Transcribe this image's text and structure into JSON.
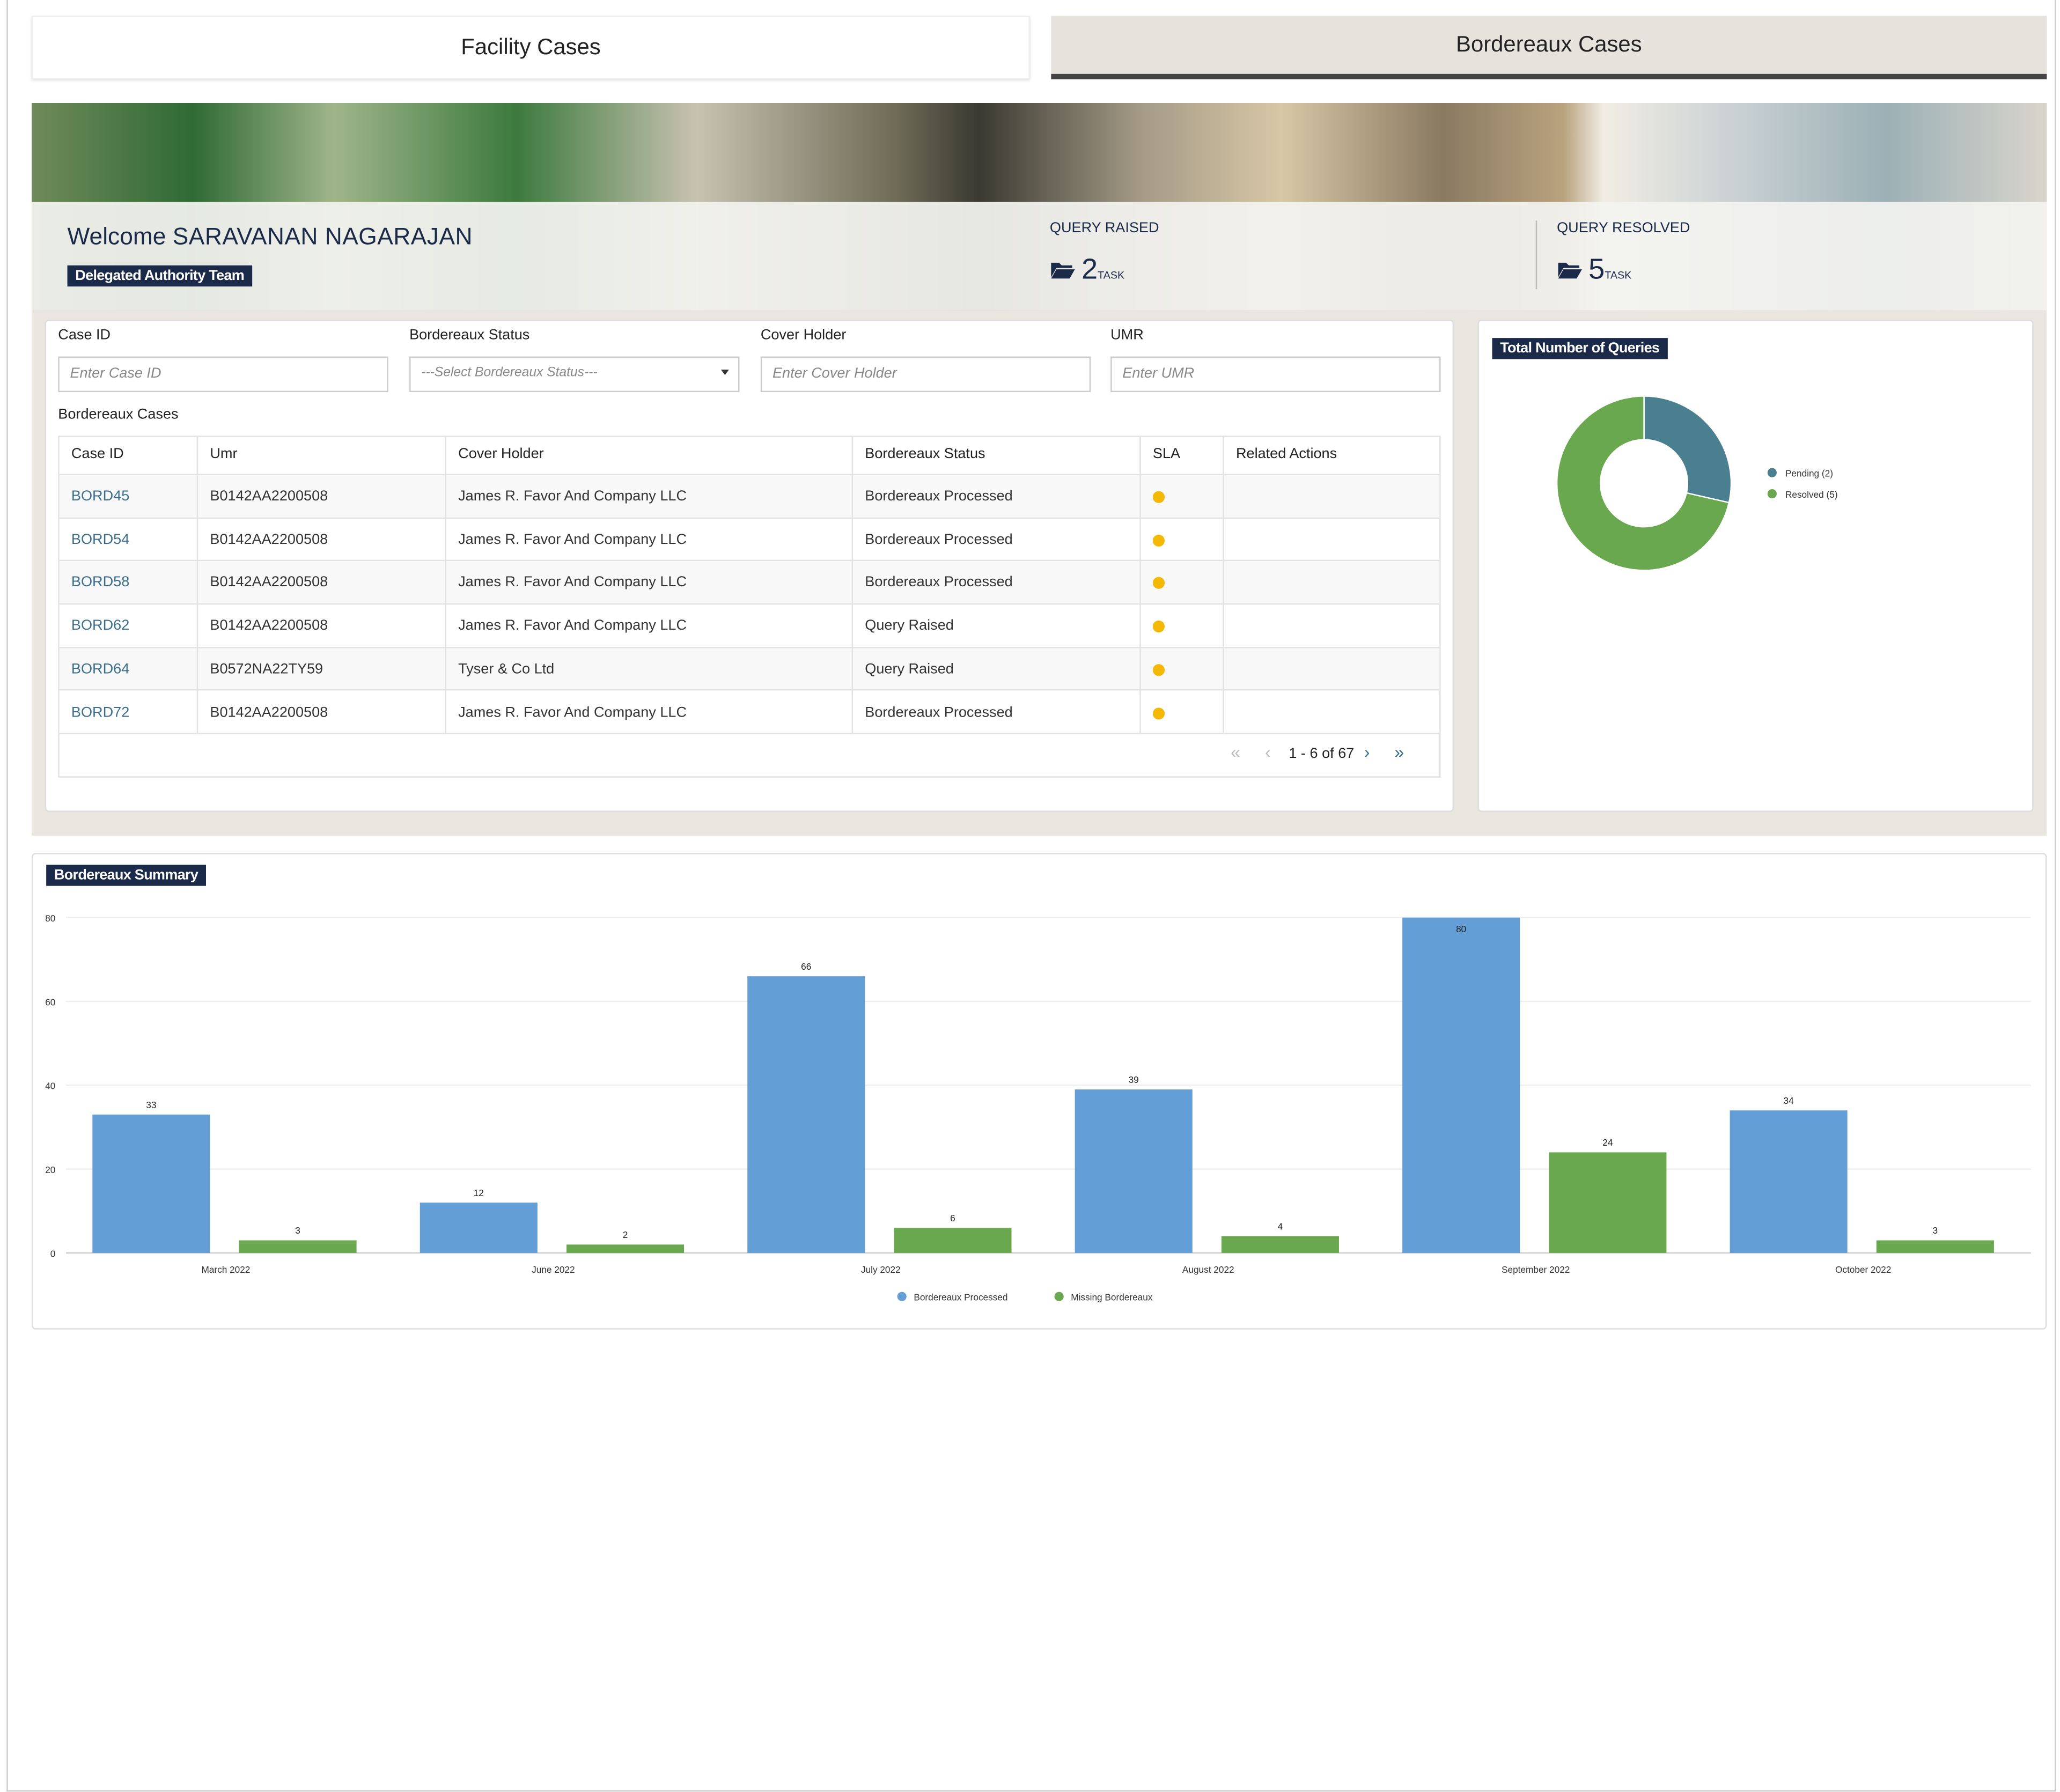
{
  "tabs": [
    "Facility Cases",
    "Bordereaux Cases"
  ],
  "header": {
    "welcome": "Welcome",
    "user": "SARAVANAN NAGARAJAN",
    "team": "Delegated Authority Team"
  },
  "stats": [
    {
      "label": "QUERY RAISED",
      "count": 2,
      "unit": "TASK"
    },
    {
      "label": "QUERY RESOLVED",
      "count": 5,
      "unit": "TASK"
    }
  ],
  "filters": [
    {
      "label": "Case ID",
      "placeholder": "Enter Case ID"
    },
    {
      "label": "Bordereaux Status",
      "placeholder": "---Select Bordereaux Status---"
    },
    {
      "label": "Cover Holder",
      "placeholder": "Enter Cover Holder"
    },
    {
      "label": "UMR",
      "placeholder": "Enter UMR"
    }
  ],
  "table": {
    "title": "Bordereaux Cases",
    "columns": [
      "Case ID",
      "Umr",
      "Cover Holder",
      "Bordereaux Status",
      "SLA",
      "Related Actions"
    ],
    "rows": [
      [
        "BORD45",
        "B0142AA2200508",
        "James R. Favor And Company LLC",
        "Bordereaux Processed"
      ],
      [
        "BORD54",
        "B0142AA2200508",
        "James R. Favor And Company LLC",
        "Bordereaux Processed"
      ],
      [
        "BORD58",
        "B0142AA2200508",
        "James R. Favor And Company LLC",
        "Bordereaux Processed"
      ],
      [
        "BORD62",
        "B0142AA2200508",
        "James R. Favor And Company LLC",
        "Query Raised"
      ],
      [
        "BORD64",
        "B0572NA22TY59",
        "Tyser & Co Ltd",
        "Query Raised"
      ],
      [
        "BORD72",
        "B0142AA2200508",
        "James R. Favor And Company LLC",
        "Bordereaux Processed"
      ]
    ],
    "pagination": "1 - 6 of 67"
  },
  "chart_data": [
    {
      "type": "donut",
      "title": "Total Number of Queries",
      "categories": [
        "Pending (2)",
        "Resolved (5)"
      ],
      "values": [
        2,
        5
      ],
      "colors": [
        "#4a7f8f",
        "#6aa84f"
      ]
    },
    {
      "type": "bar",
      "title": "Bordereaux Summary",
      "categories": [
        "March 2022",
        "June 2022",
        "July 2022",
        "August 2022",
        "September 2022",
        "October 2022"
      ],
      "series": [
        {
          "name": "Bordereaux Processed",
          "color": "#639fd6",
          "values": [
            33,
            12,
            66,
            39,
            80,
            34
          ]
        },
        {
          "name": "Missing Bordereaux",
          "color": "#6aa84f",
          "values": [
            3,
            2,
            6,
            4,
            24,
            3
          ]
        }
      ],
      "ylim": [
        0,
        80
      ],
      "yticks": [
        0,
        20,
        40,
        60,
        80
      ],
      "grid": true,
      "legend": "bottom"
    }
  ]
}
